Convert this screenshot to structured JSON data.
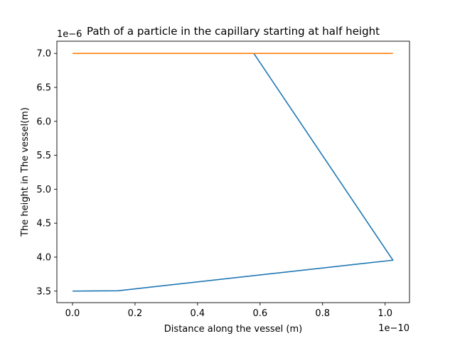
{
  "chart_data": {
    "type": "line",
    "title": "Path of a particle in the capillary starting at half height",
    "xlabel": "Distance along the vessel (m)",
    "ylabel": "The height in The vessel(m)",
    "x_offset_label": "1e−10",
    "y_offset_label": "1e−6",
    "xlim": [
      -0.05,
      1.078
    ],
    "ylim": [
      3.33,
      7.18
    ],
    "xticks": [
      0.0,
      0.2,
      0.4,
      0.6,
      0.8,
      1.0
    ],
    "xtick_labels": [
      "0.0",
      "0.2",
      "0.4",
      "0.6",
      "0.8",
      "1.0"
    ],
    "yticks": [
      3.5,
      4.0,
      4.5,
      5.0,
      5.5,
      6.0,
      6.5,
      7.0
    ],
    "ytick_labels": [
      "3.5",
      "4.0",
      "4.5",
      "5.0",
      "5.5",
      "6.0",
      "6.5",
      "7.0"
    ],
    "grid": false,
    "series": [
      {
        "color": "#1f77b4",
        "x": [
          0.0,
          0.145,
          1.025,
          0.58
        ],
        "y": [
          3.5,
          3.505,
          3.955,
          7.0
        ]
      },
      {
        "color": "#ff7f0e",
        "x": [
          0.0,
          1.025
        ],
        "y": [
          7.0,
          7.0
        ]
      }
    ]
  }
}
